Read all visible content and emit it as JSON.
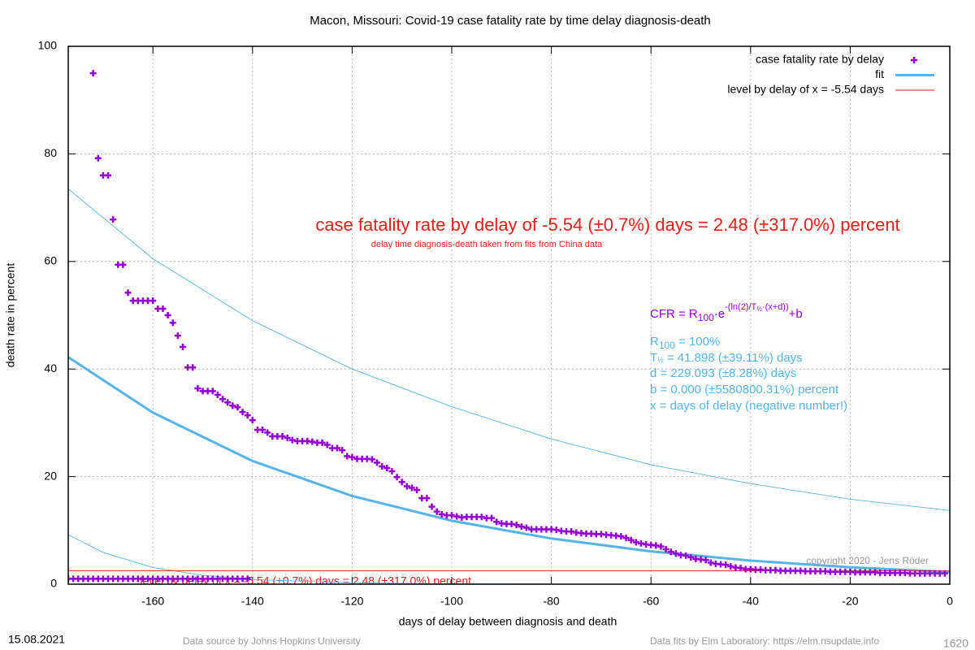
{
  "chart_data": {
    "type": "scatter",
    "title": "Macon,  Missouri: Covid-19 case fatality rate by time delay diagnosis-death",
    "xlabel": "days of delay between diagnosis and death",
    "ylabel": "death rate in percent",
    "xlim": [
      -177,
      0
    ],
    "ylim": [
      0,
      100
    ],
    "xticks": [
      -160,
      -140,
      -120,
      -100,
      -80,
      -60,
      -40,
      -20,
      0
    ],
    "yticks": [
      0,
      20,
      40,
      60,
      80,
      100
    ],
    "grid": true,
    "legend": "top-right",
    "series": [
      {
        "name": "case fatality rate by delay",
        "style": "points",
        "color": "#9400d3",
        "x": [
          -172,
          -171,
          -170,
          -169,
          -168,
          -167,
          -166,
          -165,
          -164,
          -163,
          -162,
          -161,
          -160,
          -159,
          -158,
          -157,
          -156,
          -155,
          -154,
          -153,
          -152,
          -151,
          -150,
          -149,
          -148,
          -147,
          -146,
          -145,
          -144,
          -143,
          -142,
          -141,
          -140,
          -139,
          -138,
          -137,
          -136,
          -135,
          -134,
          -133,
          -132,
          -131,
          -130,
          -129,
          -128,
          -127,
          -126,
          -125,
          -124,
          -123,
          -122,
          -121,
          -120,
          -119,
          -118,
          -117,
          -116,
          -115,
          -114,
          -113,
          -112,
          -111,
          -110,
          -109,
          -108,
          -107,
          -106,
          -105,
          -104,
          -103,
          -102,
          -101,
          -100,
          -99,
          -98,
          -97,
          -96,
          -95,
          -94,
          -93,
          -92,
          -91,
          -90,
          -89,
          -88,
          -87,
          -86,
          -85,
          -84,
          -83,
          -82,
          -81,
          -80,
          -79,
          -78,
          -77,
          -76,
          -75,
          -74,
          -73,
          -72,
          -71,
          -70,
          -69,
          -68,
          -67,
          -66,
          -65,
          -64,
          -63,
          -62,
          -61,
          -60,
          -59,
          -58,
          -57,
          -56,
          -55,
          -54,
          -53,
          -52,
          -51,
          -50,
          -49,
          -48,
          -47,
          -46,
          -45,
          -44,
          -43,
          -42,
          -41,
          -40,
          -39,
          -38,
          -37,
          -36,
          -35,
          -34,
          -33,
          -32,
          -31,
          -30,
          -29,
          -28,
          -27,
          -26,
          -25,
          -24,
          -23,
          -22,
          -21,
          -20,
          -19,
          -18,
          -17,
          -16,
          -15,
          -14,
          -13,
          -12,
          -11,
          -10,
          -9,
          -8,
          -7,
          -6,
          -5,
          -4,
          -3,
          -2,
          -1,
          -177,
          -176,
          -175,
          -174,
          -173,
          -172,
          -171,
          -170,
          -169,
          -168,
          -167,
          -166,
          -165,
          -164,
          -163,
          -162,
          -161,
          -160,
          -159,
          -158,
          -157,
          -156,
          -155,
          -154,
          -153,
          -152,
          -151,
          -150,
          -149,
          -148,
          -147,
          -146,
          -145,
          -144,
          -143,
          -142,
          -141
        ],
        "values": [
          95.0,
          79.2,
          76,
          76,
          67.8,
          59.4,
          59.4,
          54.2,
          52.7,
          52.7,
          52.7,
          52.7,
          52.7,
          51.2,
          51.2,
          50.0,
          48.6,
          46.2,
          44.1,
          40.3,
          40.3,
          36.4,
          35.9,
          35.9,
          35.9,
          35.2,
          34.4,
          33.8,
          33.2,
          32.9,
          32.0,
          31.4,
          30.5,
          28.7,
          28.7,
          28.2,
          27.5,
          27.5,
          27.5,
          27.2,
          26.8,
          26.6,
          26.6,
          26.6,
          26.5,
          26.3,
          26.3,
          25.9,
          25.3,
          25.3,
          24.9,
          23.8,
          23.6,
          23.3,
          23.3,
          23.3,
          23.2,
          22.6,
          21.9,
          21.6,
          21.0,
          19.9,
          19.0,
          18.2,
          17.9,
          17.5,
          16.0,
          16.0,
          14.4,
          13.5,
          13.0,
          12.8,
          12.8,
          12.6,
          12.4,
          12.5,
          12.5,
          12.5,
          12.5,
          12.3,
          12.3,
          11.6,
          11.3,
          11.2,
          11.2,
          11.0,
          10.7,
          10.5,
          10.2,
          10.2,
          10.2,
          10.2,
          10.2,
          10.1,
          9.9,
          9.8,
          9.8,
          9.6,
          9.5,
          9.4,
          9.4,
          9.3,
          9.3,
          9.2,
          9.1,
          9.0,
          8.9,
          8.6,
          8.2,
          7.8,
          7.6,
          7.4,
          7.3,
          7.2,
          7.0,
          6.5,
          6.0,
          5.7,
          5.4,
          5.3,
          5.0,
          4.7,
          4.6,
          4.5,
          4.0,
          3.8,
          3.7,
          3.6,
          3.3,
          3.1,
          3.0,
          2.8,
          2.8,
          2.7,
          2.7,
          2.6,
          2.6,
          2.6,
          2.5,
          2.5,
          2.5,
          2.5,
          2.5,
          2.4,
          2.4,
          2.4,
          2.4,
          2.4,
          2.3,
          2.3,
          2.3,
          2.3,
          2.3,
          2.2,
          2.2,
          2.2,
          2.2,
          2.2,
          2.1,
          2.1,
          2.1,
          2.1,
          2.1,
          2.1,
          2.0,
          2.0,
          2.0,
          2.0,
          2.0,
          2.0,
          2.0,
          2.0,
          1.0,
          1.0,
          1.0,
          1.0,
          1.0,
          1.0,
          1.0,
          1.0,
          1.0,
          1.0,
          1.0,
          1.0,
          1.0,
          1.0,
          1.0,
          1.0,
          1.0,
          1.0,
          1.0,
          1.0,
          1.0,
          1.0,
          1.0,
          1.0,
          1.0,
          1.0,
          1.0,
          1.0,
          1.0,
          1.0,
          1.0,
          1.0,
          1.0,
          1.0,
          1.0,
          1.0,
          1.0
        ]
      },
      {
        "name": "fit",
        "style": "thick",
        "color": "#56b4e9",
        "x": [
          -177,
          -160,
          -140,
          -120,
          -100,
          -80,
          -60,
          -40,
          -20,
          0
        ],
        "values": [
          42.2,
          31.9,
          22.9,
          16.4,
          11.8,
          8.49,
          6.1,
          4.38,
          3.15,
          2.26
        ]
      },
      {
        "style": "thin",
        "color": "#56b4e9",
        "x": [
          -177,
          -160,
          -140,
          -120,
          -100,
          -80,
          -60,
          -40,
          -20,
          0
        ],
        "values": [
          73.5,
          60.5,
          49,
          40,
          33,
          27,
          22.2,
          18.7,
          15.8,
          13.7
        ]
      },
      {
        "style": "thin",
        "color": "#56b4e9",
        "x": [
          -177,
          -170,
          -160,
          -150,
          -140,
          -120,
          -100,
          -80
        ],
        "values": [
          9.2,
          5.9,
          3.1,
          1.65,
          0.88,
          0.25,
          0.07,
          0.02
        ]
      },
      {
        "name": "level by delay of x = -5.54 days",
        "style": "thin",
        "color": "#e41a1c",
        "x": [
          -177,
          0
        ],
        "values": [
          2.48,
          2.48
        ]
      }
    ],
    "annotations": {
      "headline": "case fatality rate by delay of -5.54 (±0.7%) days = 2.48 (±317.0%) percent",
      "note": "delay time diagnosis-death taken from fits from China data",
      "level_text": "level by delay of x = -5.54 (±0.7%) days = 2.48 (±317.0%) percent",
      "formula": [
        "CFR = R",
        "100",
        "·e",
        "-(ln(2)/T",
        "½",
        "·(x+d))",
        "+b"
      ],
      "r100": [
        "R",
        "100",
        " = 100%"
      ],
      "thalf": [
        "T",
        "½",
        " = 41.898 (±39.11%) days"
      ],
      "d": "d = 229.093 (±8.28%) days",
      "b": "b = 0.000 (±5580800.31%) percent",
      "x": "x = days of delay (negative number!)",
      "copyright": "copyright 2020 - Jens Röder"
    },
    "footer": {
      "date": "15.08.2021",
      "source": "Data source by Johns Hopkins University",
      "fits": "Data fits by Elm Laboratory: https://elm.nsupdate.info",
      "number": "1620"
    }
  }
}
